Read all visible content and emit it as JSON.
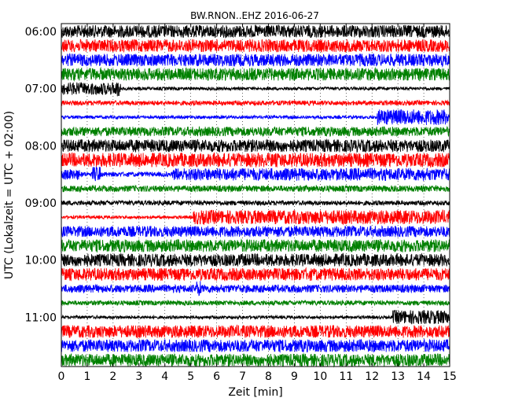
{
  "chart_data": {
    "type": "line",
    "title": "BW.RNON..EHZ 2016-06-27",
    "xlabel": "Zeit  [min]",
    "ylabel": "UTC (Lokalzeit = UTC + 02:00)",
    "xlim": [
      0,
      15
    ],
    "x_ticks": [
      "0",
      "1",
      "2",
      "3",
      "4",
      "5",
      "6",
      "7",
      "8",
      "9",
      "10",
      "11",
      "12",
      "13",
      "14",
      "15"
    ],
    "y_tick_labels": [
      "06:00",
      "07:00",
      "08:00",
      "09:00",
      "10:00",
      "11:00"
    ],
    "grid": "vertical dotted lines at each minute",
    "colors": [
      "#000000",
      "#ff0000",
      "#0000ff",
      "#008000"
    ],
    "series": [
      {
        "start": "06:00",
        "color": "#000000",
        "amplitude": 8,
        "events": []
      },
      {
        "start": "06:15",
        "color": "#ff0000",
        "amplitude": 8,
        "events": []
      },
      {
        "start": "06:30",
        "color": "#0000ff",
        "amplitude": 8,
        "events": []
      },
      {
        "start": "06:45",
        "color": "#008000",
        "amplitude": 8,
        "events": []
      },
      {
        "start": "07:00",
        "color": "#000000",
        "amplitude": 2,
        "events": [
          {
            "from": 0,
            "to": 2.1,
            "amp": 8
          },
          {
            "from": 2.1,
            "to": 2.3,
            "amp": 11
          }
        ]
      },
      {
        "start": "07:15",
        "color": "#ff0000",
        "amplitude": 3,
        "events": []
      },
      {
        "start": "07:30",
        "color": "#0000ff",
        "amplitude": 2,
        "events": [
          {
            "from": 12.2,
            "to": 15,
            "amp": 10
          }
        ]
      },
      {
        "start": "07:45",
        "color": "#008000",
        "amplitude": 6,
        "events": []
      },
      {
        "start": "08:00",
        "color": "#000000",
        "amplitude": 8,
        "events": []
      },
      {
        "start": "08:15",
        "color": "#ff0000",
        "amplitude": 9,
        "events": []
      },
      {
        "start": "08:30",
        "color": "#0000ff",
        "amplitude": 3,
        "events": [
          {
            "from": 0,
            "to": 0.7,
            "amp": 7
          },
          {
            "from": 1.2,
            "to": 1.5,
            "amp": 10
          },
          {
            "from": 4.3,
            "to": 15,
            "amp": 8
          }
        ]
      },
      {
        "start": "08:45",
        "color": "#008000",
        "amplitude": 4,
        "events": []
      },
      {
        "start": "09:00",
        "color": "#000000",
        "amplitude": 3,
        "events": []
      },
      {
        "start": "09:15",
        "color": "#ff0000",
        "amplitude": 2,
        "events": [
          {
            "from": 5.1,
            "to": 15,
            "amp": 9
          }
        ]
      },
      {
        "start": "09:30",
        "color": "#0000ff",
        "amplitude": 7,
        "events": []
      },
      {
        "start": "09:45",
        "color": "#008000",
        "amplitude": 8,
        "events": []
      },
      {
        "start": "10:00",
        "color": "#000000",
        "amplitude": 8,
        "events": []
      },
      {
        "start": "10:15",
        "color": "#ff0000",
        "amplitude": 8,
        "events": []
      },
      {
        "start": "10:30",
        "color": "#0000ff",
        "amplitude": 5,
        "events": [
          {
            "from": 5.2,
            "to": 5.4,
            "amp": 10
          }
        ]
      },
      {
        "start": "10:45",
        "color": "#008000",
        "amplitude": 3,
        "events": []
      },
      {
        "start": "11:00",
        "color": "#000000",
        "amplitude": 2,
        "events": [
          {
            "from": 12.8,
            "to": 15,
            "amp": 9
          }
        ]
      },
      {
        "start": "11:15",
        "color": "#ff0000",
        "amplitude": 8,
        "events": []
      },
      {
        "start": "11:30",
        "color": "#0000ff",
        "amplitude": 8,
        "events": []
      },
      {
        "start": "11:45",
        "color": "#008000",
        "amplitude": 8,
        "events": []
      }
    ]
  }
}
